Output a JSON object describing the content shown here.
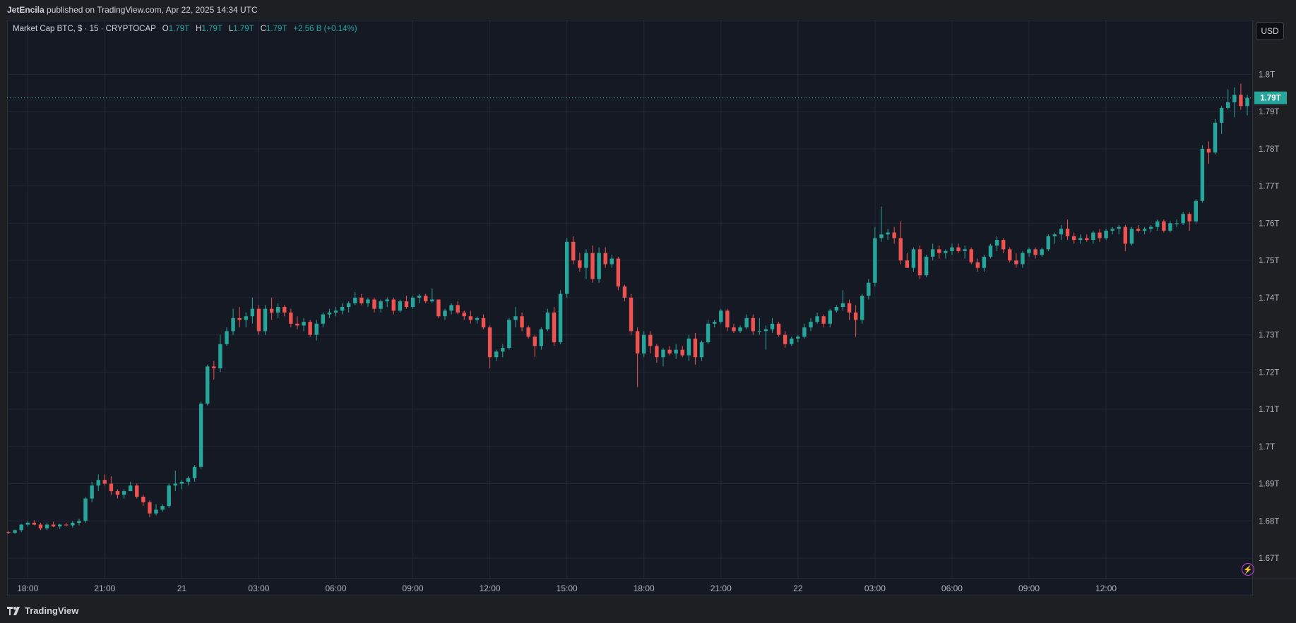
{
  "header": {
    "author": "JetEncila",
    "published_text": "published on TradingView.com, Apr 22, 2025 14:34 UTC"
  },
  "legend": {
    "symbol": "Market Cap BTC, $ · 15 · CRYPTOCAP",
    "o_label": "O",
    "o_value": "1.79T",
    "h_label": "H",
    "h_value": "1.79T",
    "l_label": "L",
    "l_value": "1.79T",
    "c_label": "C",
    "c_value": "1.79T",
    "change": "+2.56 B (+0.14%)"
  },
  "currency_button": "USD",
  "last_price_label": "1.79T",
  "footer": {
    "brand": "TradingView",
    "logo_icon": "tradingview-logo-icon"
  },
  "colors": {
    "up": "#26a69a",
    "down": "#ef5350",
    "background": "#151924",
    "grid": "#232733"
  },
  "chart_data": {
    "type": "candlestick",
    "title": "Market Cap BTC, $ · 15 · CRYPTOCAP",
    "y_unit": "T",
    "ylim": [
      1.6645,
      1.8145
    ],
    "yticks": [
      "1.8T",
      "1.79T",
      "1.78T",
      "1.77T",
      "1.76T",
      "1.75T",
      "1.74T",
      "1.73T",
      "1.72T",
      "1.71T",
      "1.7T",
      "1.69T",
      "1.68T",
      "1.67T"
    ],
    "ytick_values": [
      1.8,
      1.79,
      1.78,
      1.77,
      1.76,
      1.75,
      1.74,
      1.73,
      1.72,
      1.71,
      1.7,
      1.69,
      1.68,
      1.67
    ],
    "xticks": [
      "18:00",
      "21:00",
      "21",
      "03:00",
      "06:00",
      "09:00",
      "12:00",
      "15:00",
      "18:00",
      "21:00",
      "22",
      "03:00",
      "06:00",
      "09:00",
      "12:00"
    ],
    "xtick_bar_index": [
      3,
      15,
      27,
      39,
      51,
      63,
      75,
      87,
      99,
      111,
      123,
      135,
      147,
      159,
      171
    ],
    "last_price": 1.7937,
    "grid": true,
    "candles": [
      [
        1.677,
        1.6773,
        1.6765,
        1.6768
      ],
      [
        1.6768,
        1.6777,
        1.6765,
        1.6775
      ],
      [
        1.6775,
        1.6792,
        1.677,
        1.679
      ],
      [
        1.679,
        1.68,
        1.6785,
        1.6795
      ],
      [
        1.6795,
        1.6802,
        1.6788,
        1.679
      ],
      [
        1.679,
        1.6795,
        1.6775,
        1.678
      ],
      [
        1.678,
        1.6795,
        1.6775,
        1.679
      ],
      [
        1.679,
        1.6798,
        1.6783,
        1.6785
      ],
      [
        1.6785,
        1.6792,
        1.6778,
        1.679
      ],
      [
        1.679,
        1.6795,
        1.6785,
        1.6788
      ],
      [
        1.6788,
        1.68,
        1.6782,
        1.6795
      ],
      [
        1.6795,
        1.6805,
        1.6788,
        1.68
      ],
      [
        1.68,
        1.6865,
        1.6795,
        1.686
      ],
      [
        1.686,
        1.6905,
        1.685,
        1.6895
      ],
      [
        1.6895,
        1.6925,
        1.688,
        1.691
      ],
      [
        1.691,
        1.6925,
        1.6895,
        1.69
      ],
      [
        1.69,
        1.692,
        1.687,
        1.688
      ],
      [
        1.688,
        1.6885,
        1.686,
        1.687
      ],
      [
        1.687,
        1.6885,
        1.686,
        1.688
      ],
      [
        1.688,
        1.6905,
        1.688,
        1.6895
      ],
      [
        1.6895,
        1.69,
        1.686,
        1.6865
      ],
      [
        1.6865,
        1.687,
        1.684,
        1.685
      ],
      [
        1.685,
        1.6855,
        1.681,
        1.682
      ],
      [
        1.682,
        1.6845,
        1.6815,
        1.683
      ],
      [
        1.683,
        1.6845,
        1.6825,
        1.684
      ],
      [
        1.684,
        1.69,
        1.6835,
        1.6895
      ],
      [
        1.6895,
        1.6935,
        1.688,
        1.69
      ],
      [
        1.69,
        1.691,
        1.6885,
        1.6905
      ],
      [
        1.6905,
        1.692,
        1.6895,
        1.6915
      ],
      [
        1.6915,
        1.695,
        1.6905,
        1.6945
      ],
      [
        1.6945,
        1.712,
        1.694,
        1.7115
      ],
      [
        1.7115,
        1.722,
        1.711,
        1.7215
      ],
      [
        1.7215,
        1.723,
        1.718,
        1.721
      ],
      [
        1.721,
        1.73,
        1.72,
        1.7275
      ],
      [
        1.7275,
        1.732,
        1.727,
        1.731
      ],
      [
        1.731,
        1.737,
        1.73,
        1.7345
      ],
      [
        1.7345,
        1.7375,
        1.732,
        1.734
      ],
      [
        1.734,
        1.736,
        1.732,
        1.735
      ],
      [
        1.735,
        1.74,
        1.733,
        1.737
      ],
      [
        1.737,
        1.738,
        1.73,
        1.731
      ],
      [
        1.731,
        1.738,
        1.73,
        1.737
      ],
      [
        1.737,
        1.74,
        1.734,
        1.736
      ],
      [
        1.736,
        1.7385,
        1.7345,
        1.7375
      ],
      [
        1.7375,
        1.738,
        1.735,
        1.736
      ],
      [
        1.736,
        1.737,
        1.732,
        1.733
      ],
      [
        1.733,
        1.735,
        1.7315,
        1.7325
      ],
      [
        1.7325,
        1.7345,
        1.731,
        1.7335
      ],
      [
        1.7335,
        1.734,
        1.7295,
        1.73
      ],
      [
        1.73,
        1.734,
        1.7285,
        1.733
      ],
      [
        1.733,
        1.736,
        1.732,
        1.7355
      ],
      [
        1.7355,
        1.737,
        1.7345,
        1.736
      ],
      [
        1.736,
        1.7375,
        1.735,
        1.7365
      ],
      [
        1.7365,
        1.7385,
        1.7355,
        1.7375
      ],
      [
        1.7375,
        1.739,
        1.736,
        1.7385
      ],
      [
        1.7385,
        1.7415,
        1.738,
        1.74
      ],
      [
        1.74,
        1.741,
        1.738,
        1.7385
      ],
      [
        1.7385,
        1.74,
        1.7375,
        1.7395
      ],
      [
        1.7395,
        1.74,
        1.736,
        1.737
      ],
      [
        1.737,
        1.7395,
        1.736,
        1.739
      ],
      [
        1.739,
        1.74,
        1.7375,
        1.7395
      ],
      [
        1.7395,
        1.74,
        1.7355,
        1.7365
      ],
      [
        1.7365,
        1.7395,
        1.736,
        1.739
      ],
      [
        1.739,
        1.7405,
        1.737,
        1.7375
      ],
      [
        1.7375,
        1.7405,
        1.737,
        1.74
      ],
      [
        1.74,
        1.741,
        1.7385,
        1.7405
      ],
      [
        1.7405,
        1.741,
        1.7385,
        1.739
      ],
      [
        1.739,
        1.7425,
        1.7385,
        1.7395
      ],
      [
        1.7395,
        1.7395,
        1.7345,
        1.735
      ],
      [
        1.735,
        1.737,
        1.734,
        1.7365
      ],
      [
        1.7365,
        1.7385,
        1.7355,
        1.738
      ],
      [
        1.738,
        1.739,
        1.7355,
        1.736
      ],
      [
        1.736,
        1.7365,
        1.734,
        1.735
      ],
      [
        1.735,
        1.7365,
        1.733,
        1.734
      ],
      [
        1.734,
        1.735,
        1.733,
        1.7345
      ],
      [
        1.7345,
        1.7355,
        1.7315,
        1.732
      ],
      [
        1.732,
        1.7325,
        1.721,
        1.724
      ],
      [
        1.724,
        1.726,
        1.723,
        1.7255
      ],
      [
        1.7255,
        1.7275,
        1.724,
        1.7265
      ],
      [
        1.7265,
        1.7345,
        1.726,
        1.734
      ],
      [
        1.734,
        1.7375,
        1.732,
        1.735
      ],
      [
        1.735,
        1.736,
        1.731,
        1.732
      ],
      [
        1.732,
        1.7325,
        1.729,
        1.7295
      ],
      [
        1.7295,
        1.73,
        1.724,
        1.727
      ],
      [
        1.727,
        1.732,
        1.726,
        1.7315
      ],
      [
        1.7315,
        1.737,
        1.731,
        1.736
      ],
      [
        1.736,
        1.7375,
        1.727,
        1.728
      ],
      [
        1.728,
        1.742,
        1.7275,
        1.741
      ],
      [
        1.741,
        1.756,
        1.74,
        1.755
      ],
      [
        1.755,
        1.7565,
        1.749,
        1.75
      ],
      [
        1.75,
        1.752,
        1.747,
        1.748
      ],
      [
        1.748,
        1.753,
        1.745,
        1.752
      ],
      [
        1.752,
        1.754,
        1.744,
        1.745
      ],
      [
        1.745,
        1.7535,
        1.744,
        1.752
      ],
      [
        1.752,
        1.7535,
        1.748,
        1.749
      ],
      [
        1.749,
        1.7515,
        1.748,
        1.7505
      ],
      [
        1.7505,
        1.751,
        1.742,
        1.743
      ],
      [
        1.743,
        1.7435,
        1.739,
        1.74
      ],
      [
        1.74,
        1.741,
        1.73,
        1.731
      ],
      [
        1.731,
        1.732,
        1.716,
        1.725
      ],
      [
        1.725,
        1.731,
        1.724,
        1.73
      ],
      [
        1.73,
        1.731,
        1.725,
        1.727
      ],
      [
        1.727,
        1.7275,
        1.7225,
        1.724
      ],
      [
        1.724,
        1.7265,
        1.7215,
        1.726
      ],
      [
        1.726,
        1.727,
        1.7245,
        1.725
      ],
      [
        1.725,
        1.7275,
        1.7235,
        1.726
      ],
      [
        1.726,
        1.727,
        1.724,
        1.7245
      ],
      [
        1.7245,
        1.73,
        1.723,
        1.729
      ],
      [
        1.729,
        1.7305,
        1.722,
        1.724
      ],
      [
        1.724,
        1.7285,
        1.723,
        1.728
      ],
      [
        1.728,
        1.734,
        1.7275,
        1.733
      ],
      [
        1.733,
        1.734,
        1.732,
        1.7335
      ],
      [
        1.7335,
        1.737,
        1.733,
        1.7365
      ],
      [
        1.7365,
        1.737,
        1.731,
        1.732
      ],
      [
        1.732,
        1.733,
        1.7305,
        1.731
      ],
      [
        1.731,
        1.7325,
        1.7305,
        1.732
      ],
      [
        1.732,
        1.7355,
        1.7315,
        1.7345
      ],
      [
        1.7345,
        1.7355,
        1.73,
        1.731
      ],
      [
        1.731,
        1.7345,
        1.73,
        1.731
      ],
      [
        1.731,
        1.7325,
        1.726,
        1.7315
      ],
      [
        1.7315,
        1.7345,
        1.7305,
        1.733
      ],
      [
        1.733,
        1.7335,
        1.7295,
        1.73
      ],
      [
        1.73,
        1.731,
        1.7265,
        1.7275
      ],
      [
        1.7275,
        1.7295,
        1.727,
        1.729
      ],
      [
        1.729,
        1.73,
        1.728,
        1.7295
      ],
      [
        1.7295,
        1.733,
        1.729,
        1.732
      ],
      [
        1.732,
        1.7345,
        1.731,
        1.7335
      ],
      [
        1.7335,
        1.736,
        1.733,
        1.735
      ],
      [
        1.735,
        1.7355,
        1.732,
        1.733
      ],
      [
        1.733,
        1.737,
        1.732,
        1.7365
      ],
      [
        1.7365,
        1.738,
        1.736,
        1.7375
      ],
      [
        1.7375,
        1.742,
        1.7365,
        1.7385
      ],
      [
        1.7385,
        1.7395,
        1.734,
        1.736
      ],
      [
        1.736,
        1.738,
        1.7295,
        1.734
      ],
      [
        1.734,
        1.741,
        1.733,
        1.7405
      ],
      [
        1.7405,
        1.745,
        1.7395,
        1.744
      ],
      [
        1.744,
        1.759,
        1.743,
        1.756
      ],
      [
        1.756,
        1.7645,
        1.755,
        1.757
      ],
      [
        1.757,
        1.7585,
        1.7555,
        1.7575
      ],
      [
        1.7575,
        1.759,
        1.7545,
        1.756
      ],
      [
        1.756,
        1.7605,
        1.749,
        1.75
      ],
      [
        1.75,
        1.752,
        1.748,
        1.748
      ],
      [
        1.748,
        1.7535,
        1.747,
        1.753
      ],
      [
        1.753,
        1.754,
        1.745,
        1.746
      ],
      [
        1.746,
        1.7515,
        1.7455,
        1.751
      ],
      [
        1.751,
        1.7545,
        1.75,
        1.753
      ],
      [
        1.753,
        1.754,
        1.7505,
        1.752
      ],
      [
        1.752,
        1.753,
        1.7505,
        1.7525
      ],
      [
        1.7525,
        1.7545,
        1.7515,
        1.7535
      ],
      [
        1.7535,
        1.7545,
        1.752,
        1.7525
      ],
      [
        1.7525,
        1.754,
        1.7505,
        1.753
      ],
      [
        1.753,
        1.7535,
        1.749,
        1.7495
      ],
      [
        1.7495,
        1.7505,
        1.747,
        1.748
      ],
      [
        1.748,
        1.7515,
        1.747,
        1.751
      ],
      [
        1.751,
        1.7545,
        1.7505,
        1.754
      ],
      [
        1.754,
        1.7565,
        1.7525,
        1.7555
      ],
      [
        1.7555,
        1.756,
        1.752,
        1.753
      ],
      [
        1.753,
        1.7535,
        1.7495,
        1.75
      ],
      [
        1.75,
        1.752,
        1.748,
        1.749
      ],
      [
        1.749,
        1.7525,
        1.748,
        1.752
      ],
      [
        1.752,
        1.7535,
        1.751,
        1.753
      ],
      [
        1.753,
        1.7535,
        1.7505,
        1.7515
      ],
      [
        1.7515,
        1.7535,
        1.751,
        1.753
      ],
      [
        1.753,
        1.757,
        1.7525,
        1.7565
      ],
      [
        1.7565,
        1.7575,
        1.7545,
        1.757
      ],
      [
        1.757,
        1.7595,
        1.7555,
        1.7585
      ],
      [
        1.7585,
        1.761,
        1.7555,
        1.7565
      ],
      [
        1.7565,
        1.7575,
        1.7545,
        1.7555
      ],
      [
        1.7555,
        1.757,
        1.7545,
        1.756
      ],
      [
        1.756,
        1.757,
        1.755,
        1.7555
      ],
      [
        1.7555,
        1.758,
        1.7545,
        1.7575
      ],
      [
        1.7575,
        1.7585,
        1.755,
        1.756
      ],
      [
        1.756,
        1.7585,
        1.7555,
        1.758
      ],
      [
        1.758,
        1.759,
        1.757,
        1.7585
      ],
      [
        1.7585,
        1.7595,
        1.757,
        1.759
      ],
      [
        1.759,
        1.7595,
        1.7525,
        1.7545
      ],
      [
        1.7545,
        1.759,
        1.754,
        1.7585
      ],
      [
        1.7585,
        1.7595,
        1.7575,
        1.758
      ],
      [
        1.758,
        1.759,
        1.757,
        1.7585
      ],
      [
        1.7585,
        1.7595,
        1.7575,
        1.759
      ],
      [
        1.759,
        1.761,
        1.758,
        1.7605
      ],
      [
        1.7605,
        1.761,
        1.7575,
        1.758
      ],
      [
        1.758,
        1.7605,
        1.7575,
        1.76
      ],
      [
        1.76,
        1.761,
        1.759,
        1.76
      ],
      [
        1.76,
        1.763,
        1.7595,
        1.7625
      ],
      [
        1.7625,
        1.763,
        1.758,
        1.7605
      ],
      [
        1.7605,
        1.7665,
        1.76,
        1.766
      ],
      [
        1.766,
        1.781,
        1.7655,
        1.78
      ],
      [
        1.78,
        1.782,
        1.776,
        1.779
      ],
      [
        1.779,
        1.788,
        1.7785,
        1.787
      ],
      [
        1.787,
        1.7915,
        1.784,
        1.791
      ],
      [
        1.791,
        1.796,
        1.7905,
        1.7925
      ],
      [
        1.7925,
        1.7965,
        1.7885,
        1.7945
      ],
      [
        1.7945,
        1.7975,
        1.7905,
        1.7915
      ],
      [
        1.7915,
        1.7945,
        1.789,
        1.7937
      ]
    ]
  }
}
